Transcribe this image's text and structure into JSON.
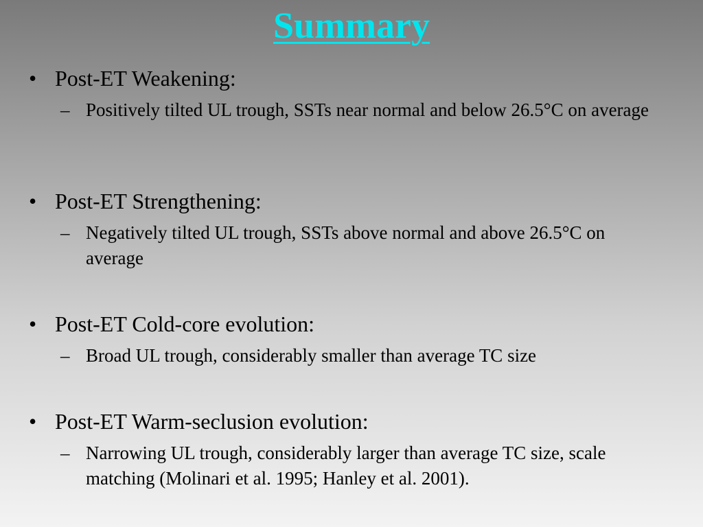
{
  "slide": {
    "title": "Summary",
    "bullet_glyph": "•",
    "dash_glyph": "–",
    "items": [
      {
        "heading": "Post-ET Weakening:",
        "detail": "Positively tilted UL trough, SSTs near normal and below 26.5°C on average"
      },
      {
        "heading": "Post-ET Strengthening:",
        "detail": "Negatively tilted UL trough, SSTs above normal and above 26.5°C on average"
      },
      {
        "heading": "Post-ET Cold-core evolution:",
        "detail": "Broad UL trough, considerably smaller than average TC size"
      },
      {
        "heading": "Post-ET Warm-seclusion evolution:",
        "detail": "Narrowing UL trough, considerably larger than average TC size, scale matching (Molinari et al. 1995; Hanley et al. 2001)."
      }
    ]
  },
  "colors": {
    "title": "#00e5ee",
    "text": "#000000",
    "background_top": "#7a7a7a",
    "background_bottom": "#f3f3f3"
  }
}
